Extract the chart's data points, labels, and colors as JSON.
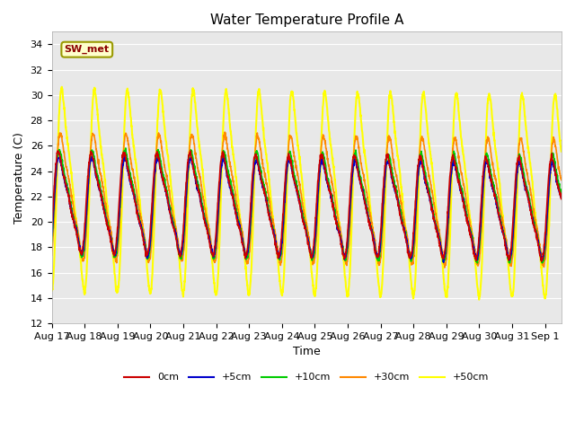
{
  "title": "Water Temperature Profile A",
  "xlabel": "Time",
  "ylabel": "Temperature (C)",
  "ylim": [
    12,
    35
  ],
  "yticks": [
    12,
    14,
    16,
    18,
    20,
    22,
    24,
    26,
    28,
    30,
    32,
    34
  ],
  "background_color": "#ffffff",
  "plot_bg_color": "#e8e8e8",
  "legend_label": "SW_met",
  "legend_bg": "#ffffcc",
  "legend_border": "#999900",
  "series_order": [
    "0cm",
    "+5cm",
    "+10cm",
    "+30cm",
    "+50cm"
  ],
  "series": {
    "0cm": {
      "color": "#cc0000",
      "lw": 1.2
    },
    "+5cm": {
      "color": "#0000cc",
      "lw": 1.2
    },
    "+10cm": {
      "color": "#00cc00",
      "lw": 1.2
    },
    "+30cm": {
      "color": "#ff8800",
      "lw": 1.2
    },
    "+50cm": {
      "color": "#ffff00",
      "lw": 1.5
    }
  },
  "n_days": 15.5,
  "ppd": 144,
  "base_mid": 21.0,
  "amp_0cm": 4.5,
  "amp_5cm": 4.2,
  "amp_10cm": 4.8,
  "amp_30cm": 5.5,
  "amp_50cm": 8.5,
  "phase_0cm": 0.0,
  "phase_5cm": 0.05,
  "phase_10cm": 0.08,
  "phase_30cm": 0.12,
  "phase_50cm": 0.18,
  "noise_scale": 0.1,
  "trend_slope": -0.03,
  "tick_labels": [
    "Aug 17",
    "Aug 18",
    "Aug 19",
    "Aug 20",
    "Aug 21",
    "Aug 22",
    "Aug 23",
    "Aug 24",
    "Aug 25",
    "Aug 26",
    "Aug 27",
    "Aug 28",
    "Aug 29",
    "Aug 30",
    "Aug 31",
    "Sep 1"
  ]
}
